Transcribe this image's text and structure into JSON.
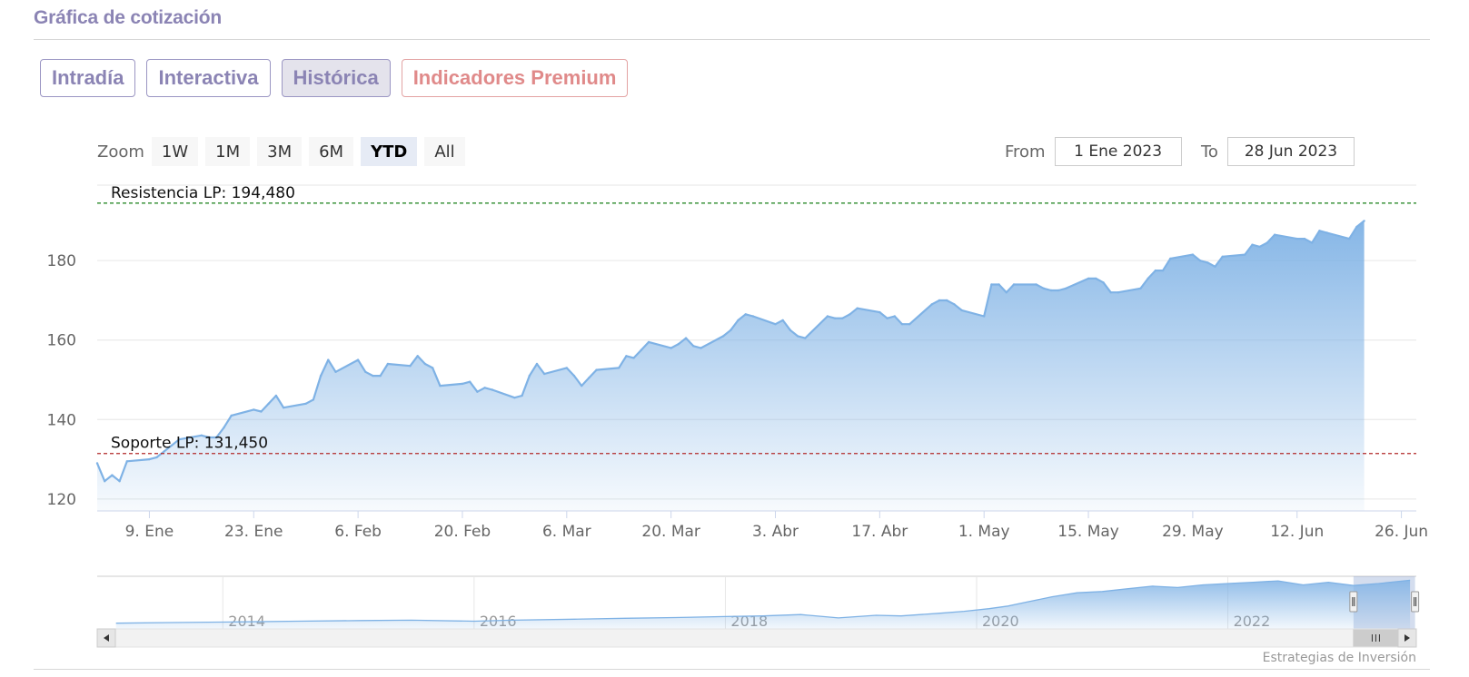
{
  "header": {
    "title": "Gráfica de cotización"
  },
  "tabs": [
    {
      "label": "Intradía",
      "active": false
    },
    {
      "label": "Interactiva",
      "active": false
    },
    {
      "label": "Histórica",
      "active": true
    },
    {
      "label": "Indicadores Premium",
      "active": false
    }
  ],
  "zoom": {
    "label": "Zoom",
    "buttons": [
      "1W",
      "1M",
      "3M",
      "6M",
      "YTD",
      "All"
    ],
    "selected": "YTD"
  },
  "range": {
    "from_label": "From",
    "from_value": "1 Ene 2023",
    "to_label": "To",
    "to_value": "28 Jun 2023"
  },
  "credit": "Estrategias de Inversión",
  "colors": {
    "accent": "#8b84b4",
    "premium": "#e08a8a",
    "series_line": "#7fb2e5",
    "resistance": "#2a8a2a",
    "support": "#b22a2a"
  },
  "chart_data": [
    {
      "type": "area",
      "x_start": "2023-01-02",
      "x_end": "2023-06-28",
      "ylim": [
        117,
        199
      ],
      "yticks": [
        120,
        140,
        160,
        180
      ],
      "xtick_labels": [
        "9. Ene",
        "23. Ene",
        "6. Feb",
        "20. Feb",
        "6. Mar",
        "20. Mar",
        "3. Abr",
        "17. Abr",
        "1. May",
        "15. May",
        "29. May",
        "12. Jun",
        "26. Jun"
      ],
      "grid": true,
      "values": [
        129,
        124.5,
        126,
        124.5,
        129.5,
        130,
        130.5,
        132,
        133.5,
        135,
        136,
        135.5,
        135.5,
        138,
        141,
        142.5,
        142,
        144,
        146,
        143,
        144,
        145,
        151,
        155,
        152,
        155,
        152,
        151,
        151,
        154,
        153.5,
        156,
        154,
        153,
        148.5,
        149,
        149.5,
        147,
        148,
        147.5,
        145.5,
        146,
        151,
        154,
        151.5,
        153,
        151,
        148.5,
        150.5,
        152.5,
        153,
        156,
        155.5,
        157.5,
        159.5,
        158,
        159,
        160.5,
        158.5,
        158,
        161,
        162.5,
        165,
        166.5,
        166,
        164,
        165,
        162.5,
        161,
        160.5,
        166,
        165.5,
        165.5,
        166.5,
        168,
        167,
        165.5,
        166,
        164,
        164,
        169,
        170,
        170,
        169,
        167.5,
        166,
        174,
        174,
        172,
        174,
        174,
        173,
        172.5,
        172.5,
        173,
        175.5,
        175.5,
        174.5,
        172,
        172,
        173,
        175.5,
        177.5,
        177.5,
        180.5,
        181.5,
        180,
        179.5,
        178.5,
        181,
        181.5,
        184,
        183.5,
        184.5,
        186.5,
        185.5,
        185.5,
        184.5,
        187.5,
        187,
        185.5,
        188.5,
        190
      ],
      "annotations": [
        {
          "label": "Resistencia LP: 194,480",
          "value": 194.48
        },
        {
          "label": "Soporte LP: 131,450",
          "value": 131.45
        }
      ]
    },
    {
      "type": "area",
      "role": "navigator",
      "x_range": [
        2013.0,
        2023.5
      ],
      "xtick_labels": [
        "2014",
        "2016",
        "2018",
        "2020",
        "2022"
      ],
      "x": [
        2013.15,
        2013.6,
        2014.1,
        2014.6,
        2015.1,
        2015.5,
        2016.0,
        2016.3,
        2016.8,
        2017.2,
        2017.6,
        2018.0,
        2018.3,
        2018.6,
        2018.9,
        2019.2,
        2019.4,
        2019.7,
        2019.9,
        2020.1,
        2020.25,
        2020.4,
        2020.6,
        2020.8,
        2021.0,
        2021.2,
        2021.4,
        2021.6,
        2021.8,
        2022.0,
        2022.2,
        2022.4,
        2022.6,
        2022.8,
        2023.0,
        2023.2,
        2023.45
      ],
      "values": [
        10,
        11,
        12,
        13,
        14,
        14.5,
        13,
        14.5,
        16,
        17.5,
        18.5,
        20,
        21,
        23,
        18,
        22,
        21,
        25,
        28,
        32,
        36,
        42,
        50,
        56,
        58,
        62,
        66,
        64,
        68,
        70,
        72,
        74,
        68,
        72,
        67,
        70,
        75
      ],
      "selected_range": [
        "1 Ene 2023",
        "28 Jun 2023"
      ]
    }
  ]
}
